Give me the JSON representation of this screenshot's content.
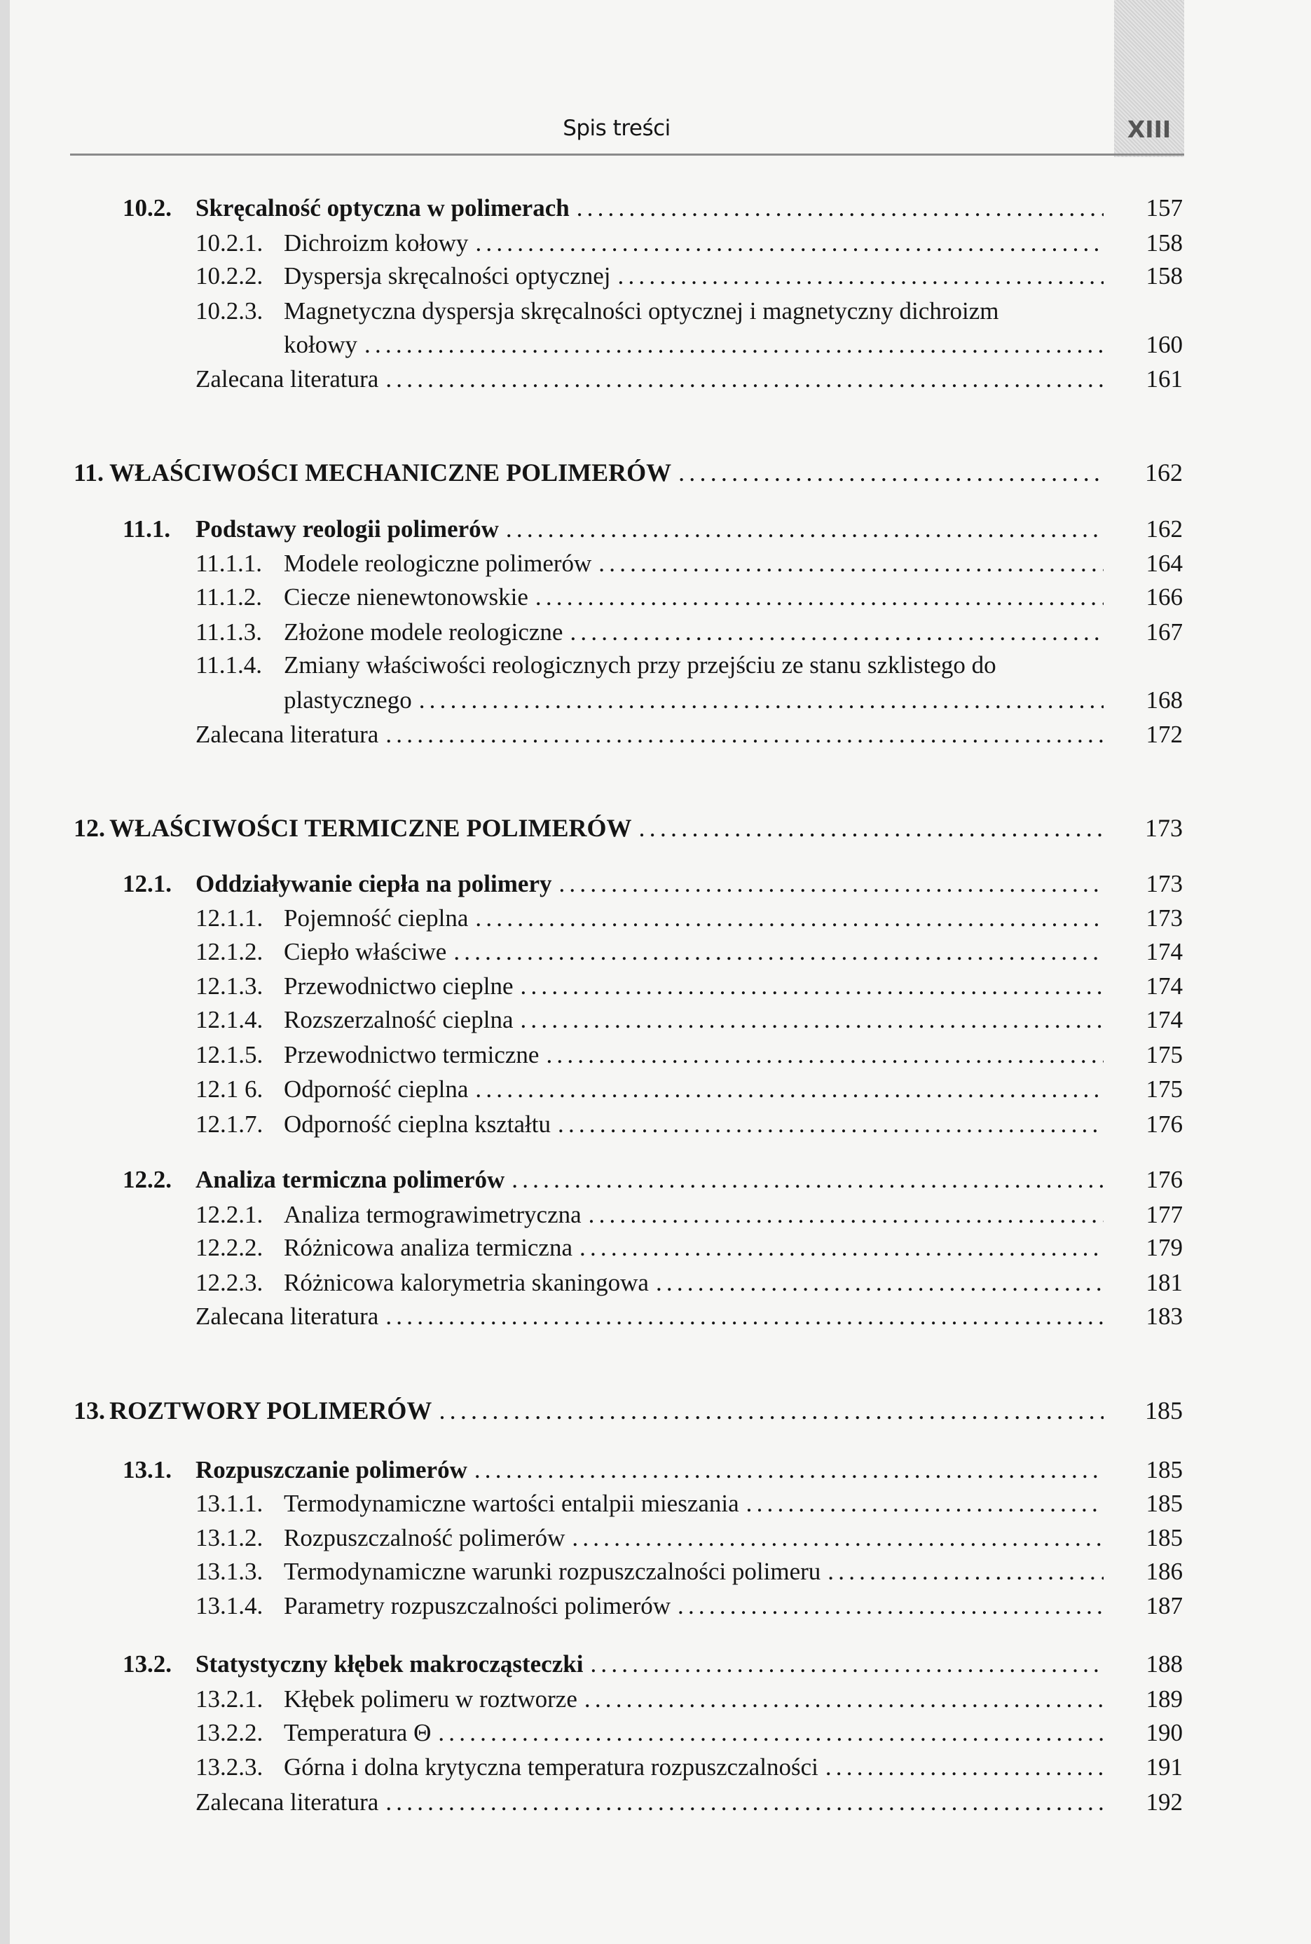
{
  "header": {
    "running_title": "Spis treści",
    "page_number": "XIII"
  },
  "entries": [
    {
      "level": "section",
      "num": "10.2.",
      "title_lines": [
        "Skręcalność optyczna w polimerach"
      ],
      "page": "157"
    },
    {
      "level": "sub",
      "num": "10.2.1.",
      "title_lines": [
        "Dichroizm kołowy"
      ],
      "page": "158"
    },
    {
      "level": "sub",
      "num": "10.2.2.",
      "title_lines": [
        "Dyspersja skręcalności optycznej"
      ],
      "page": "158"
    },
    {
      "level": "sub",
      "num": "10.2.3.",
      "title_lines": [
        "Magnetyczna dyspersja skręcalności optycznej i magnetyczny dichroizm",
        "kołowy"
      ],
      "page": "160"
    },
    {
      "level": "lit",
      "num": "",
      "title_lines": [
        "Zalecana literatura"
      ],
      "page": "161"
    },
    {
      "level": "chapter",
      "num": "11.",
      "title_lines": [
        "WŁAŚCIWOŚCI MECHANICZNE POLIMERÓW"
      ],
      "page": "162"
    },
    {
      "level": "section",
      "num": "11.1.",
      "title_lines": [
        "Podstawy reologii polimerów"
      ],
      "page": "162"
    },
    {
      "level": "sub",
      "num": "11.1.1.",
      "title_lines": [
        "Modele reologiczne polimerów"
      ],
      "page": "164"
    },
    {
      "level": "sub",
      "num": "11.1.2.",
      "title_lines": [
        "Ciecze nienewtonowskie"
      ],
      "page": "166"
    },
    {
      "level": "sub",
      "num": "11.1.3.",
      "title_lines": [
        "Złożone modele reologiczne"
      ],
      "page": "167"
    },
    {
      "level": "sub",
      "num": "11.1.4.",
      "title_lines": [
        "Zmiany właściwości reologicznych przy przejściu ze stanu szklistego do",
        "plastycznego"
      ],
      "page": "168"
    },
    {
      "level": "lit",
      "num": "",
      "title_lines": [
        "Zalecana literatura"
      ],
      "page": "172"
    },
    {
      "level": "chapter",
      "num": "12.",
      "title_lines": [
        "WŁAŚCIWOŚCI TERMICZNE POLIMERÓW"
      ],
      "page": "173"
    },
    {
      "level": "section",
      "num": "12.1.",
      "title_lines": [
        "Oddziaływanie ciepła na polimery"
      ],
      "page": "173"
    },
    {
      "level": "sub",
      "num": "12.1.1.",
      "title_lines": [
        "Pojemność cieplna"
      ],
      "page": "173"
    },
    {
      "level": "sub",
      "num": "12.1.2.",
      "title_lines": [
        "Ciepło właściwe"
      ],
      "page": "174"
    },
    {
      "level": "sub",
      "num": "12.1.3.",
      "title_lines": [
        "Przewodnictwo cieplne"
      ],
      "page": "174"
    },
    {
      "level": "sub",
      "num": "12.1.4.",
      "title_lines": [
        "Rozszerzalność cieplna"
      ],
      "page": "174"
    },
    {
      "level": "sub",
      "num": "12.1.5.",
      "title_lines": [
        "Przewodnictwo termiczne"
      ],
      "page": "175"
    },
    {
      "level": "sub",
      "num": "12.1 6.",
      "title_lines": [
        "Odporność cieplna"
      ],
      "page": "175"
    },
    {
      "level": "sub",
      "num": "12.1.7.",
      "title_lines": [
        "Odporność cieplna kształtu"
      ],
      "page": "176"
    },
    {
      "level": "section",
      "num": "12.2.",
      "title_lines": [
        "Analiza termiczna polimerów"
      ],
      "page": "176"
    },
    {
      "level": "sub",
      "num": "12.2.1.",
      "title_lines": [
        "Analiza termograwimetryczna"
      ],
      "page": "177"
    },
    {
      "level": "sub",
      "num": "12.2.2.",
      "title_lines": [
        "Różnicowa analiza termiczna"
      ],
      "page": "179"
    },
    {
      "level": "sub",
      "num": "12.2.3.",
      "title_lines": [
        "Różnicowa kalorymetria skaningowa"
      ],
      "page": "181"
    },
    {
      "level": "lit",
      "num": "",
      "title_lines": [
        "Zalecana literatura"
      ],
      "page": "183"
    },
    {
      "level": "chapter",
      "num": "13.",
      "title_lines": [
        "ROZTWORY POLIMERÓW"
      ],
      "page": "185"
    },
    {
      "level": "section",
      "num": "13.1.",
      "title_lines": [
        "Rozpuszczanie polimerów"
      ],
      "page": "185"
    },
    {
      "level": "sub",
      "num": "13.1.1.",
      "title_lines": [
        "Termodynamiczne wartości entalpii mieszania"
      ],
      "page": "185"
    },
    {
      "level": "sub",
      "num": "13.1.2.",
      "title_lines": [
        "Rozpuszczalność polimerów"
      ],
      "page": "185"
    },
    {
      "level": "sub",
      "num": "13.1.3.",
      "title_lines": [
        "Termodynamiczne warunki rozpuszczalności polimeru"
      ],
      "page": "186"
    },
    {
      "level": "sub",
      "num": "13.1.4.",
      "title_lines": [
        "Parametry rozpuszczalności polimerów"
      ],
      "page": "187"
    },
    {
      "level": "section",
      "num": "13.2.",
      "title_lines": [
        "Statystyczny kłębek makrocząsteczki"
      ],
      "page": "188"
    },
    {
      "level": "sub",
      "num": "13.2.1.",
      "title_lines": [
        "Kłębek polimeru w roztworze"
      ],
      "page": "189"
    },
    {
      "level": "sub",
      "num": "13.2.2.",
      "title_lines": [
        "Temperatura Θ"
      ],
      "page": "190"
    },
    {
      "level": "sub",
      "num": "13.2.3.",
      "title_lines": [
        "Górna i dolna krytyczna temperatura rozpuszczalności"
      ],
      "page": "191"
    },
    {
      "level": "lit",
      "num": "",
      "title_lines": [
        "Zalecana literatura"
      ],
      "page": "192"
    }
  ]
}
